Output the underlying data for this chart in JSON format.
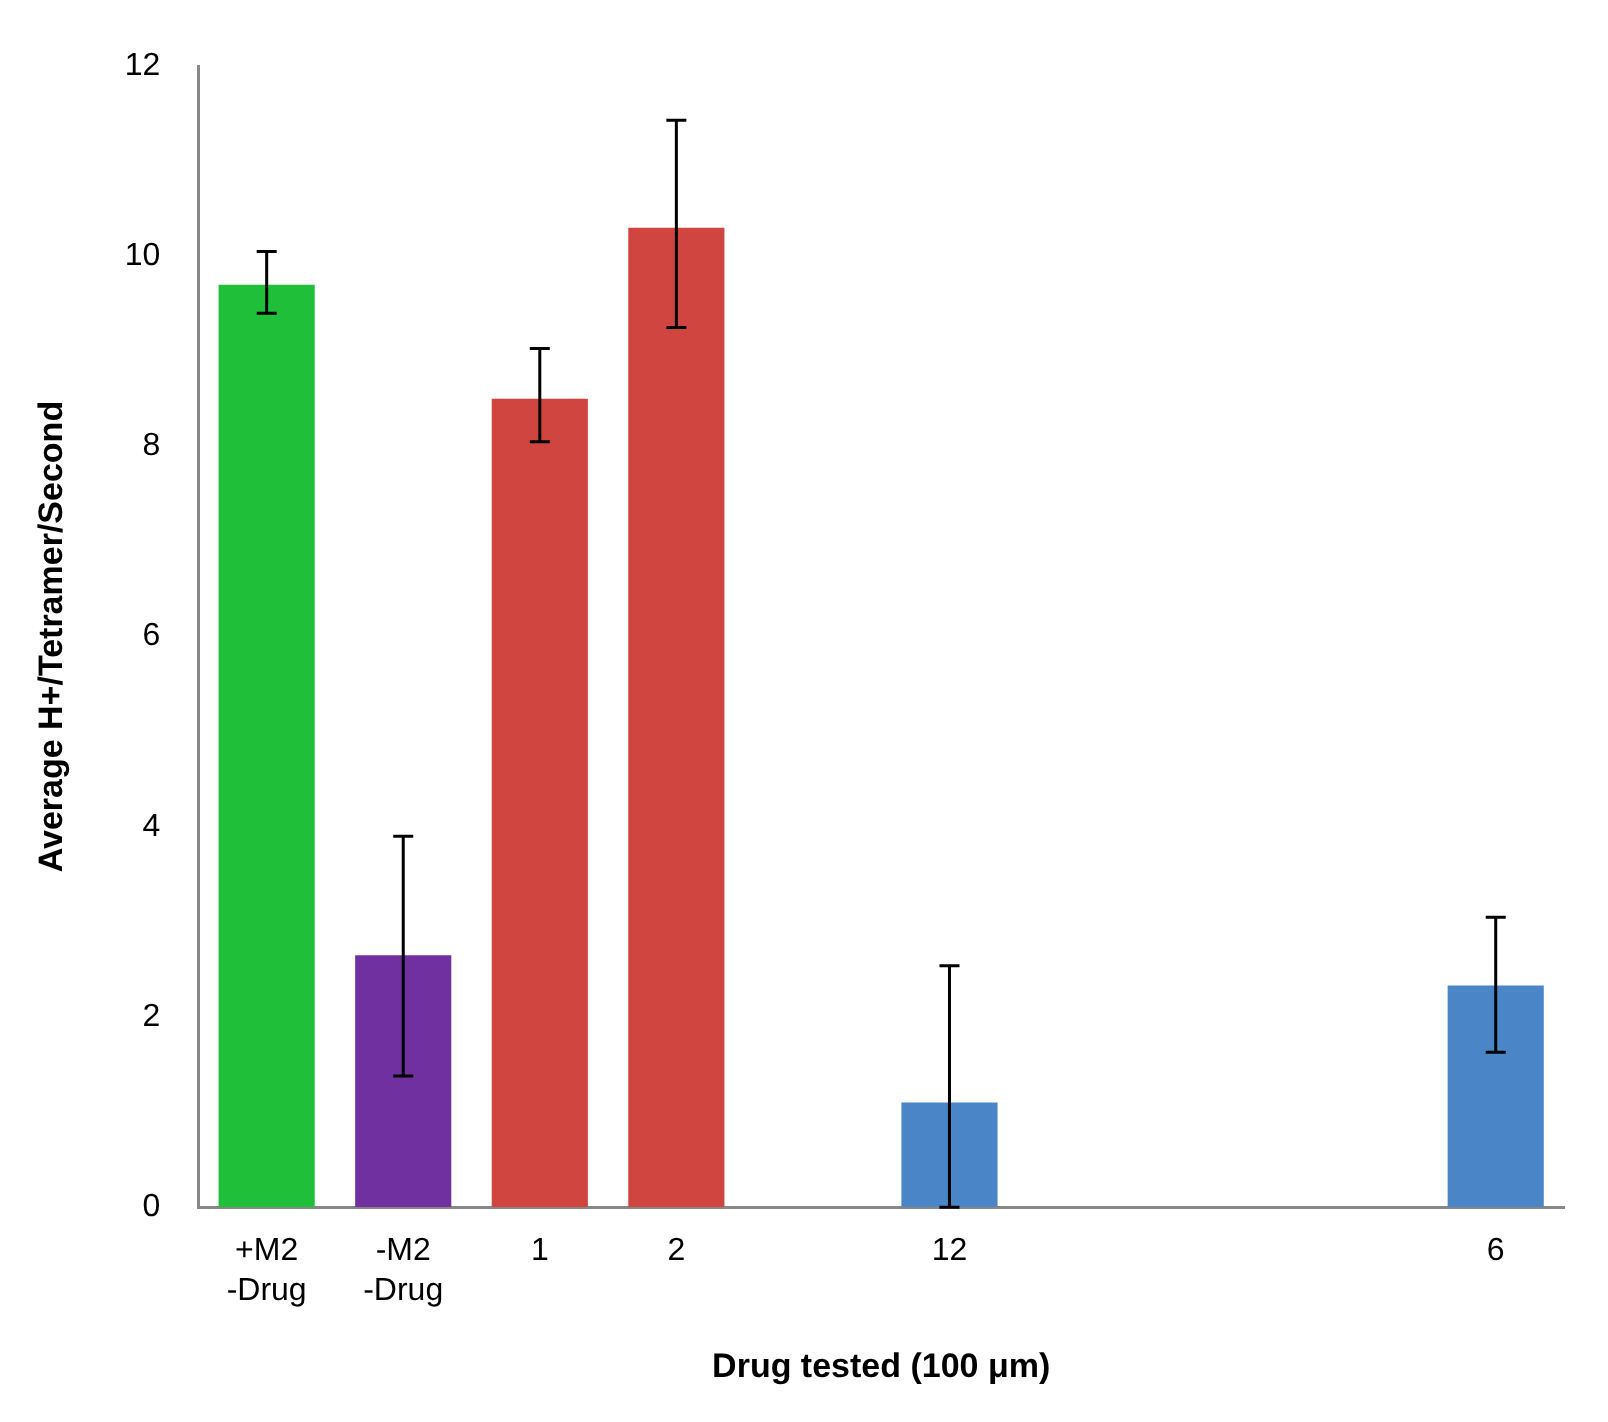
{
  "chart_data": {
    "type": "bar",
    "xlabel": "Drug tested (100 μm)",
    "ylabel": "Average H+/Tetramer/Second",
    "categories": [
      "+M2 -Drug",
      "-M2 -Drug",
      "1",
      "2",
      null,
      "12",
      null,
      null,
      null,
      "6"
    ],
    "values": [
      9.7,
      2.65,
      8.5,
      10.3,
      null,
      1.1,
      null,
      null,
      null,
      2.33
    ],
    "colors": [
      "#1fbf3a",
      "#7030a0",
      "#d0453f",
      "#d0453f",
      null,
      "#4a85c8",
      null,
      null,
      null,
      "#4a85c8"
    ],
    "errors": [
      [
        9.4,
        10.05
      ],
      [
        1.38,
        3.9
      ],
      [
        8.05,
        9.03
      ],
      [
        9.25,
        11.43
      ],
      null,
      [
        0,
        2.54
      ],
      null,
      null,
      null,
      [
        1.63,
        3.05
      ]
    ],
    "ylim": [
      0,
      12
    ],
    "yticks": [
      0,
      2,
      4,
      6,
      8,
      10,
      12
    ],
    "grid": false,
    "legend": false
  }
}
